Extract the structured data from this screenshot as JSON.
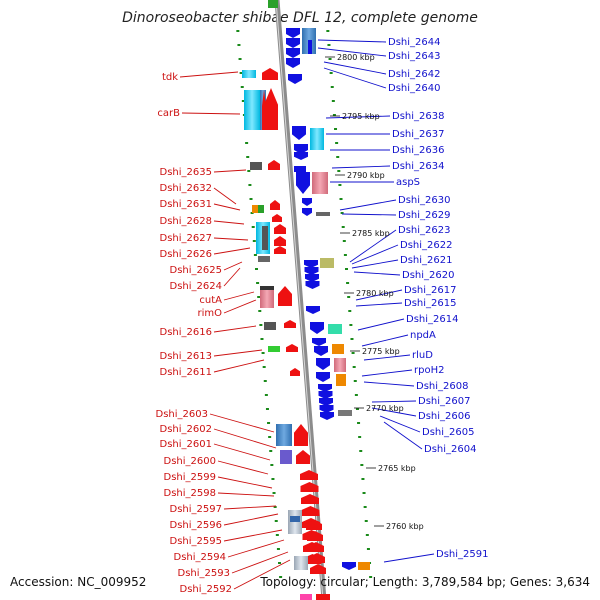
{
  "title": "Dinoroseobacter shibae DFL 12, complete genome",
  "footer": {
    "accession": "Accession: NC_009952",
    "info": "Topology: circular; Length: 3,789,584 bp; Genes: 3,634"
  },
  "colors": {
    "left_label": "#cc1111",
    "right_label": "#1111cc",
    "backbone": "#888888",
    "tick": "#1a8a1a"
  },
  "left_labels": [
    "tdk",
    "carB",
    "Dshi_2635",
    "Dshi_2632",
    "Dshi_2631",
    "Dshi_2628",
    "Dshi_2627",
    "Dshi_2626",
    "Dshi_2625",
    "Dshi_2624",
    "cutA",
    "rimO",
    "Dshi_2616",
    "Dshi_2613",
    "Dshi_2611",
    "Dshi_2603",
    "Dshi_2602",
    "Dshi_2601",
    "Dshi_2600",
    "Dshi_2599",
    "Dshi_2598",
    "Dshi_2597",
    "Dshi_2596",
    "Dshi_2595",
    "Dshi_2594",
    "Dshi_2593",
    "Dshi_2592"
  ],
  "right_labels": [
    "Dshi_2644",
    "Dshi_2643",
    "Dshi_2642",
    "Dshi_2640",
    "Dshi_2638",
    "Dshi_2637",
    "Dshi_2636",
    "Dshi_2634",
    "aspS",
    "Dshi_2630",
    "Dshi_2629",
    "Dshi_2623",
    "Dshi_2622",
    "Dshi_2621",
    "Dshi_2620",
    "Dshi_2617",
    "Dshi_2615",
    "Dshi_2614",
    "npdA",
    "rluD",
    "rpoH2",
    "Dshi_2608",
    "Dshi_2607",
    "Dshi_2606",
    "Dshi_2605",
    "Dshi_2604",
    "Dshi_2591"
  ],
  "kbp_labels": [
    "2800 kbp",
    "2795 kbp",
    "2790 kbp",
    "2785 kbp",
    "2780 kbp",
    "2775 kbp",
    "2770 kbp",
    "2765 kbp",
    "2760 kbp"
  ]
}
